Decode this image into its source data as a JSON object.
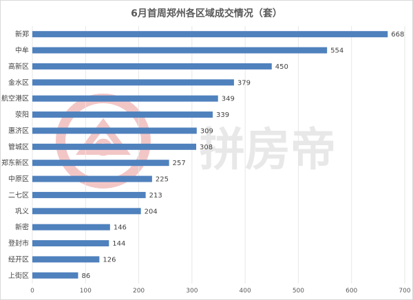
{
  "title": "6月首周郑州各区域成交情况（套）",
  "watermark": "拼房帝",
  "colors": {
    "bar": "#4f81bd",
    "grid": "#e6e6e6",
    "watermark_icon": "#f3c6c6"
  },
  "chart_data": {
    "type": "bar",
    "orientation": "horizontal",
    "title": "6月首周郑州各区域成交情况（套）",
    "categories": [
      "新郑",
      "中牟",
      "高新区",
      "金水区",
      "航空港区",
      "荥阳",
      "惠济区",
      "管城区",
      "郑东新区",
      "中原区",
      "二七区",
      "巩义",
      "新密",
      "登封市",
      "经开区",
      "上街区"
    ],
    "values": [
      668,
      554,
      450,
      379,
      349,
      339,
      309,
      308,
      257,
      225,
      213,
      204,
      146,
      144,
      126,
      86
    ],
    "xlim": [
      0,
      700
    ],
    "xticks": [
      0,
      100,
      200,
      300,
      400,
      500,
      600,
      700
    ],
    "grid": true,
    "data_labels": true
  }
}
